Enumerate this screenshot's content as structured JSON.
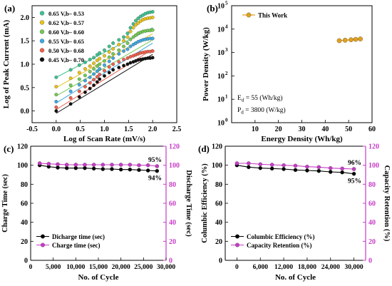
{
  "panels": {
    "a": {
      "label": "(a)",
      "xlabel": "Log of Scan Rate (mV/s)",
      "ylabel": "Log of Peak Current (mA)"
    },
    "b": {
      "label": "(b)",
      "xlabel": "Energy Density (Wh/kg)",
      "ylabel": "Power Density (W/kg)",
      "annotation_ed": "E",
      "annotation_ed_sub": "d",
      "annotation_ed_val": " = 55  (Wh/kg)",
      "annotation_pd": "P",
      "annotation_pd_sub": "d",
      "annotation_pd_val": " = 3800 (W/kg)"
    },
    "c": {
      "label": "(c)",
      "xlabel": "No. of Cycle",
      "ylabel_left": "Charge Time (sec)",
      "ylabel_right": "Discharge Time (sec)",
      "annot_top": "95%",
      "annot_bottom": "94%"
    },
    "d": {
      "label": "(d)",
      "xlabel": "No. of Cycle",
      "ylabel_left": "Columbic Efficiency (%)",
      "ylabel_right": "Capacity Retention (%)",
      "annot_top": "96%",
      "annot_bottom": "95%"
    }
  },
  "chart_data": [
    {
      "id": "a",
      "type": "scatter",
      "xlim": [
        -0.5,
        2.5
      ],
      "ylim": [
        -0.25,
        2.25
      ],
      "xticks": [
        -0.5,
        0.0,
        0.5,
        1.0,
        1.5,
        2.0,
        2.5
      ],
      "xtick_labels": [
        "-0.5",
        "0.0",
        "0.5",
        "1.0",
        "1.5",
        "2.0",
        "2.5"
      ],
      "yticks": [
        0.0,
        0.5,
        1.0,
        1.5,
        2.0
      ],
      "ytick_labels": [
        "0.0",
        "0.5",
        "1.0",
        "1.5",
        "2.0"
      ],
      "x": [
        0.0,
        0.3,
        0.48,
        0.6,
        0.7,
        0.78,
        0.85,
        0.9,
        1.0,
        1.1,
        1.18,
        1.3,
        1.4,
        1.48,
        1.54,
        1.6,
        1.65,
        1.7,
        1.75,
        1.8,
        1.85,
        1.9,
        1.95,
        2.0
      ],
      "fit_x": [
        0.0,
        2.0
      ],
      "series": [
        {
          "name": "0.65 V,b– 0.53",
          "color": "#3ec28f",
          "values": [
            0.72,
            0.88,
            0.98,
            1.04,
            1.1,
            1.14,
            1.2,
            1.24,
            1.3,
            1.38,
            1.45,
            1.52,
            1.58,
            1.66,
            1.78,
            1.86,
            1.93,
            1.98,
            2.02,
            2.05,
            2.08,
            2.1,
            2.11,
            2.12
          ],
          "fit_y": [
            0.72,
            1.78
          ]
        },
        {
          "name": "0.62 V,b– 0.57",
          "color": "#e8c21c",
          "values": [
            0.52,
            0.7,
            0.82,
            0.9,
            0.96,
            1.02,
            1.08,
            1.12,
            1.18,
            1.26,
            1.33,
            1.42,
            1.5,
            1.58,
            1.7,
            1.78,
            1.84,
            1.88,
            1.92,
            1.95,
            1.97,
            1.98,
            1.99,
            2.0
          ],
          "fit_y": [
            0.5,
            1.65
          ]
        },
        {
          "name": "0.60 V,b– 0.60",
          "color": "#74c954",
          "values": [
            0.35,
            0.55,
            0.68,
            0.76,
            0.84,
            0.9,
            0.96,
            1.0,
            1.07,
            1.15,
            1.22,
            1.3,
            1.38,
            1.45,
            1.53,
            1.58,
            1.62,
            1.66,
            1.68,
            1.7,
            1.71,
            1.72,
            1.72,
            1.73
          ],
          "fit_y": [
            0.32,
            1.52
          ]
        },
        {
          "name": "0.55 V,b– 0.65",
          "color": "#3fa7e0",
          "values": [
            0.2,
            0.42,
            0.56,
            0.65,
            0.72,
            0.79,
            0.85,
            0.9,
            0.98,
            1.06,
            1.13,
            1.22,
            1.28,
            1.32,
            1.38,
            1.42,
            1.45,
            1.48,
            1.5,
            1.52,
            1.53,
            1.54,
            1.55,
            1.55
          ],
          "fit_y": [
            0.17,
            1.45
          ]
        },
        {
          "name": "0.50 V,b– 0.68",
          "color": "#ee5f4c",
          "values": [
            0.08,
            0.28,
            0.42,
            0.52,
            0.6,
            0.67,
            0.73,
            0.78,
            0.86,
            0.94,
            1.0,
            1.05,
            1.1,
            1.13,
            1.16,
            1.18,
            1.2,
            1.22,
            1.24,
            1.25,
            1.26,
            1.27,
            1.27,
            1.28
          ],
          "fit_y": [
            0.03,
            1.32
          ]
        },
        {
          "name": "0.45 V,b– 0.70",
          "color": "#111111",
          "values": [
            0.0,
            0.15,
            0.3,
            0.4,
            0.48,
            0.55,
            0.62,
            0.68,
            0.75,
            0.82,
            0.88,
            0.93,
            0.97,
            1.0,
            1.03,
            1.05,
            1.07,
            1.09,
            1.1,
            1.11,
            1.12,
            1.13,
            1.13,
            1.14
          ],
          "fit_y": [
            -0.05,
            1.21
          ]
        }
      ]
    },
    {
      "id": "b",
      "type": "line",
      "scale_y": "log",
      "xlim": [
        0,
        60
      ],
      "ylim_exp": [
        0,
        5
      ],
      "xticks": [
        10,
        20,
        30,
        40,
        50,
        60
      ],
      "xtick_labels": [
        "10",
        "20",
        "30",
        "40",
        "50",
        "60"
      ],
      "ytick_labels": [
        "10",
        "10",
        "10",
        "10",
        "10",
        "10"
      ],
      "ytick_exponents": [
        "0",
        "1",
        "2",
        "3",
        "4",
        "5"
      ],
      "legend": "top-left",
      "series": [
        {
          "name": "This Work",
          "color": "#e0a020",
          "x": [
            46,
            48.5,
            51,
            53,
            55
          ],
          "values": [
            3200,
            3350,
            3500,
            3650,
            3800
          ]
        }
      ]
    },
    {
      "id": "c",
      "type": "line",
      "xlim": [
        0,
        30000
      ],
      "ylim": [
        0,
        120
      ],
      "xticks": [
        0,
        5000,
        10000,
        15000,
        20000,
        25000,
        30000
      ],
      "xtick_labels": [
        "0",
        "5,000",
        "10,000",
        "15,000",
        "20,000",
        "25,000",
        "30,000"
      ],
      "yticks": [
        0,
        20,
        40,
        60,
        80,
        100,
        120
      ],
      "ytick_labels": [
        "0",
        "20",
        "40",
        "60",
        "80",
        "100",
        "120"
      ],
      "legend": "bottom-left",
      "x": [
        2000,
        4000,
        6000,
        8000,
        10000,
        12000,
        14000,
        16000,
        18000,
        20000,
        22000,
        24000,
        26000,
        28000
      ],
      "series": [
        {
          "name": "Dicharge time (sec)",
          "color": "#000000",
          "axis": "left",
          "values": [
            100,
            98.5,
            97.5,
            97,
            97,
            97,
            96.5,
            96,
            96,
            95.5,
            95.5,
            95,
            94.5,
            94
          ]
        },
        {
          "name": "Charge time (sec)",
          "color": "#c63cc6",
          "axis": "right",
          "values": [
            102,
            101.5,
            101,
            100.5,
            100.5,
            100.5,
            100.5,
            100.5,
            100.5,
            100.5,
            100.5,
            100,
            100,
            99
          ]
        }
      ]
    },
    {
      "id": "d",
      "type": "line",
      "xlim": [
        -3000,
        33000
      ],
      "ylim": [
        0,
        120
      ],
      "xticks": [
        0,
        6000,
        12000,
        18000,
        24000,
        30000
      ],
      "xtick_labels": [
        "0",
        "6,000",
        "12,000",
        "18,000",
        "24,000",
        "30,000"
      ],
      "yticks": [
        0,
        20,
        40,
        60,
        80,
        100,
        120
      ],
      "ytick_labels": [
        "0",
        "20",
        "40",
        "60",
        "80",
        "100",
        "120"
      ],
      "legend": "bottom-left",
      "x": [
        0,
        3000,
        6000,
        9000,
        12000,
        15000,
        18000,
        21000,
        24000,
        27000,
        30000
      ],
      "series": [
        {
          "name": "Columbic Efficiency (%)",
          "color": "#000000",
          "axis": "left",
          "values": [
            100,
            98,
            97,
            96.5,
            96,
            95,
            94.5,
            94,
            93,
            92.5,
            91
          ]
        },
        {
          "name": "Capacity Retention (%)",
          "color": "#c63cc6",
          "axis": "right",
          "values": [
            102,
            102,
            101,
            100.5,
            100,
            99.5,
            98.5,
            98,
            97,
            96.5,
            96
          ]
        }
      ]
    }
  ]
}
